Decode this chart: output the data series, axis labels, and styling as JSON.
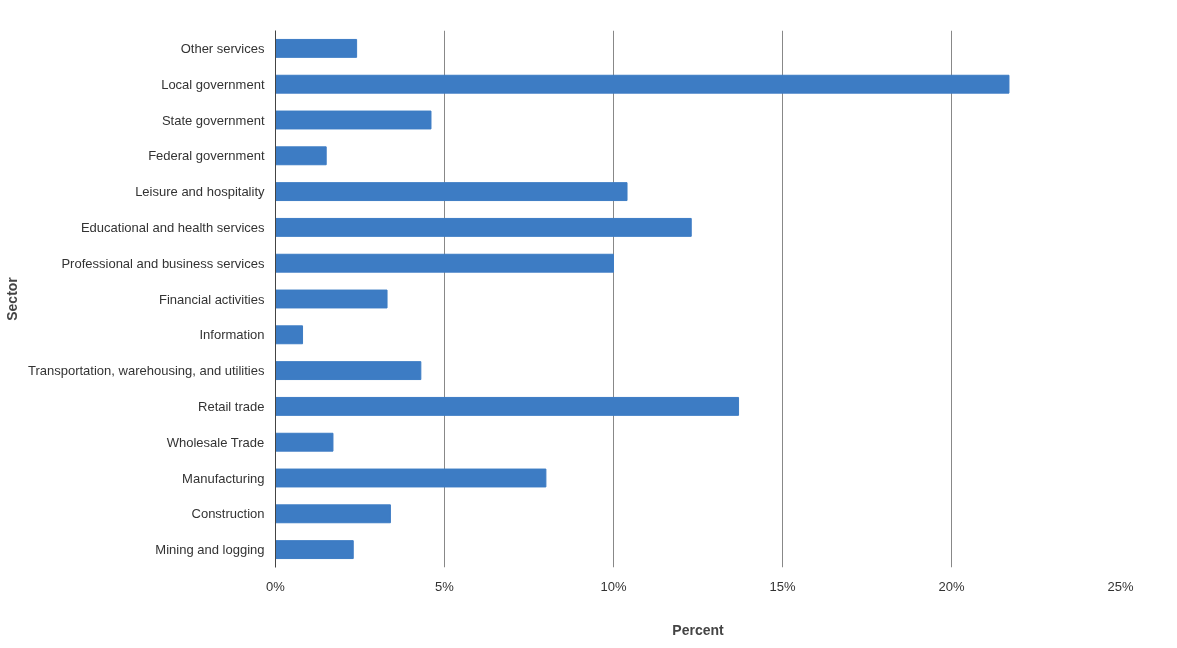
{
  "chart_data": {
    "type": "bar",
    "orientation": "horizontal",
    "xlabel": "Percent",
    "ylabel": "Sector",
    "categories": [
      "Other services",
      "Local government",
      "State government",
      "Federal government",
      "Leisure and hospitality",
      "Educational and health services",
      "Professional and business services",
      "Financial activities",
      "Information",
      "Transportation, warehousing, and utilities",
      "Retail trade",
      "Wholesale Trade",
      "Manufacturing",
      "Construction",
      "Mining and logging"
    ],
    "values": [
      2.4,
      21.7,
      4.6,
      1.5,
      10.4,
      12.3,
      10.0,
      3.3,
      0.8,
      4.3,
      13.7,
      1.7,
      8.0,
      3.4,
      2.3
    ],
    "color": "#3d7cc4",
    "xlim": [
      0,
      25
    ],
    "xticks": [
      {
        "value": 0,
        "label": "0%"
      },
      {
        "value": 5,
        "label": "5%"
      },
      {
        "value": 10,
        "label": "10%"
      },
      {
        "value": 15,
        "label": "15%"
      },
      {
        "value": 20,
        "label": "20%"
      },
      {
        "value": 25,
        "label": "25%"
      }
    ],
    "grid": "x"
  }
}
